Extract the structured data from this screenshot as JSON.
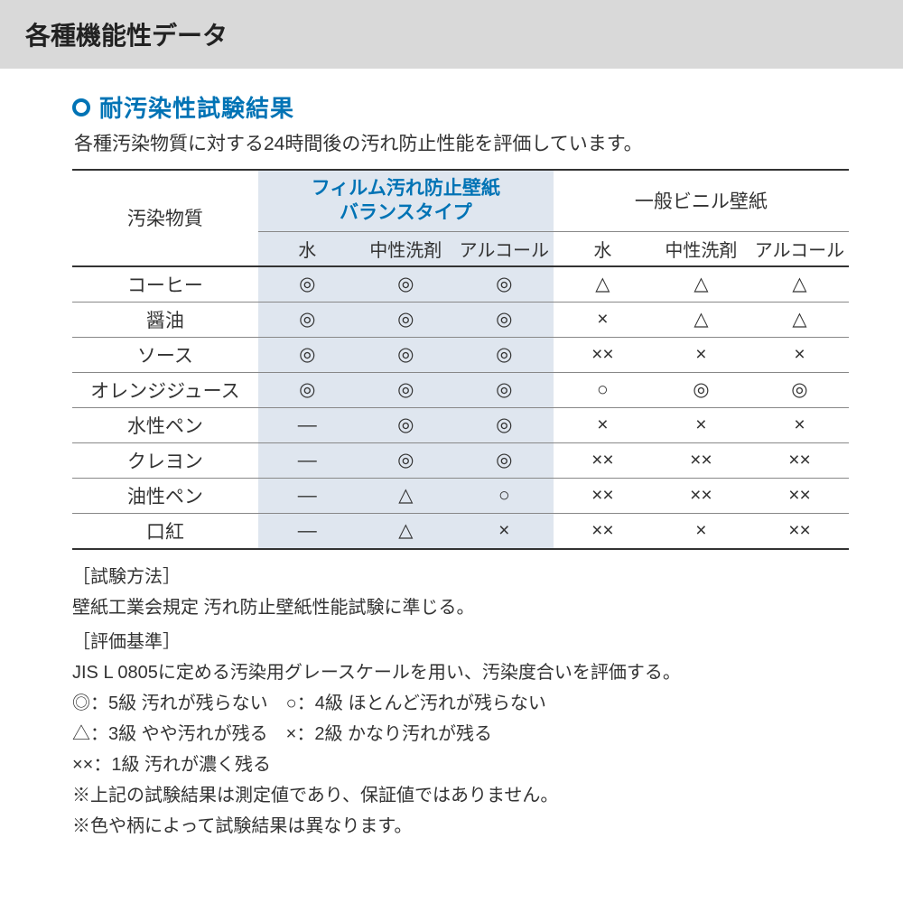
{
  "colors": {
    "header_bg": "#d9d9d9",
    "accent": "#0073b5",
    "film_col_bg": "#dfe6ef",
    "rule_thick": "#333333",
    "rule_thin": "#888888",
    "text": "#333333"
  },
  "header": {
    "title": "各種機能性データ"
  },
  "section": {
    "bullet_color": "#0073b5",
    "title": "耐汚染性試験結果",
    "lead": "各種汚染物質に対する24時間後の汚れ防止性能を評価しています。"
  },
  "table": {
    "type": "table",
    "corner_label": "汚染物質",
    "groups": [
      {
        "label_line1": "フィルム汚れ防止壁紙",
        "label_line2": "バランスタイプ",
        "highlight": true
      },
      {
        "label": "一般ビニル壁紙",
        "highlight": false
      }
    ],
    "sub_columns": [
      "水",
      "中性洗剤",
      "アルコール",
      "水",
      "中性洗剤",
      "アルコール"
    ],
    "rows": [
      {
        "label": "コーヒー",
        "cells": [
          "◎",
          "◎",
          "◎",
          "△",
          "△",
          "△"
        ]
      },
      {
        "label": "醤油",
        "cells": [
          "◎",
          "◎",
          "◎",
          "×",
          "△",
          "△"
        ]
      },
      {
        "label": "ソース",
        "cells": [
          "◎",
          "◎",
          "◎",
          "××",
          "×",
          "×"
        ]
      },
      {
        "label": "オレンジジュース",
        "cells": [
          "◎",
          "◎",
          "◎",
          "○",
          "◎",
          "◎"
        ]
      },
      {
        "label": "水性ペン",
        "cells": [
          "―",
          "◎",
          "◎",
          "×",
          "×",
          "×"
        ]
      },
      {
        "label": "クレヨン",
        "cells": [
          "―",
          "◎",
          "◎",
          "××",
          "××",
          "××"
        ]
      },
      {
        "label": "油性ペン",
        "cells": [
          "―",
          "△",
          "○",
          "××",
          "××",
          "××"
        ]
      },
      {
        "label": "口紅",
        "cells": [
          "―",
          "△",
          "×",
          "××",
          "×",
          "××"
        ]
      }
    ]
  },
  "notes": {
    "method_label": "［試験方法］",
    "method_text": "壁紙工業会規定 汚れ防止壁紙性能試験に準じる。",
    "criteria_label": "［評価基準］",
    "criteria_text": "JIS L 0805に定める汚染用グレースケールを用い、汚染度合いを評価する。",
    "legend_line1": "◎：5級 汚れが残らない　○：4級 ほとんど汚れが残らない",
    "legend_line2": "△：3級 やや汚れが残る　×：2級 かなり汚れが残る",
    "legend_line3": "××：1級 汚れが濃く残る",
    "disclaimer1": "※上記の試験結果は測定値であり、保証値ではありません。",
    "disclaimer2": "※色や柄によって試験結果は異なります。"
  }
}
